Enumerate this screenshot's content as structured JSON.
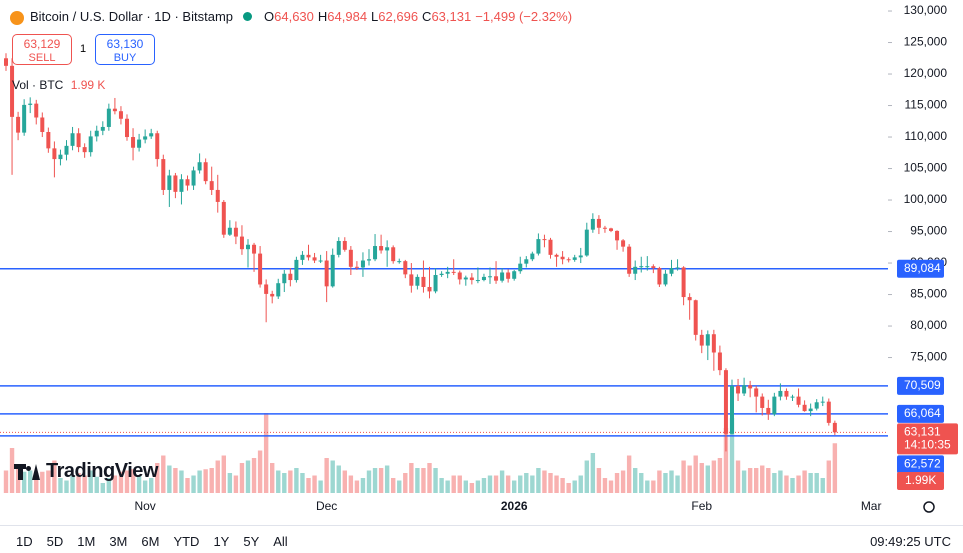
{
  "header": {
    "symbol": "Bitcoin / U.S. Dollar · 1D · Bitstamp",
    "ohlc": [
      {
        "key": "O",
        "value": "64,630"
      },
      {
        "key": "H",
        "value": "64,984"
      },
      {
        "key": "L",
        "value": "62,696"
      },
      {
        "key": "C",
        "value": "63,131"
      }
    ],
    "change": "−1,499 (−2.32%)"
  },
  "trade": {
    "sell_price": "63,129",
    "sell": "SELL",
    "quantity": "1",
    "buy_price": "63,130",
    "buy": "BUY"
  },
  "volume_legend": {
    "label": "Vol · BTC",
    "value": "1.99 K"
  },
  "logo": "TradingView",
  "timeframes": [
    "1D",
    "5D",
    "1M",
    "3M",
    "6M",
    "YTD",
    "1Y",
    "5Y",
    "All"
  ],
  "clock": "09:49:25 UTC",
  "chart_data": {
    "type": "candlestick",
    "categories": [
      null,
      null,
      null,
      null,
      null,
      null,
      null,
      null,
      null,
      null,
      null,
      null,
      null,
      null,
      null,
      null,
      null,
      null,
      null,
      null,
      null,
      null,
      null,
      "Nov",
      null,
      null,
      null,
      null,
      null,
      null,
      null,
      null,
      null,
      null,
      null,
      null,
      null,
      null,
      null,
      null,
      null,
      null,
      null,
      null,
      null,
      null,
      null,
      null,
      null,
      null,
      null,
      null,
      null,
      "Dec",
      null,
      null,
      null,
      null,
      null,
      null,
      null,
      null,
      null,
      null,
      null,
      null,
      null,
      null,
      null,
      null,
      null,
      null,
      null,
      null,
      null,
      null,
      null,
      null,
      null,
      null,
      null,
      null,
      null,
      null,
      "2026",
      null,
      null,
      null,
      null,
      null,
      null,
      null,
      null,
      null,
      null,
      null,
      null,
      null,
      null,
      null,
      null,
      null,
      null,
      null,
      null,
      null,
      null,
      null,
      null,
      null,
      null,
      null,
      null,
      null,
      null,
      "Feb",
      null,
      null,
      null,
      null,
      null,
      null,
      null,
      null,
      null,
      null,
      null,
      null,
      null,
      null,
      null,
      null,
      null,
      null,
      null,
      null,
      null,
      null,
      null,
      null,
      null,
      null,
      null,
      "Mar"
    ],
    "open": [
      122500,
      121300,
      113200,
      110700,
      115100,
      115300,
      113100,
      110800,
      108200,
      106500,
      107200,
      108600,
      110600,
      108400,
      107600,
      110100,
      111000,
      111600,
      114500,
      114100,
      112900,
      110000,
      108300,
      109600,
      110100,
      110600,
      106500,
      101600,
      103900,
      101300,
      103300,
      102300,
      104700,
      106000,
      103000,
      101600,
      99700,
      94500,
      95600,
      94200,
      92200,
      92900,
      91500,
      86600,
      85100,
      84700,
      86800,
      88300,
      87300,
      90500,
      91300,
      90900,
      90400,
      90400,
      86300,
      91300,
      93500,
      92100,
      89400,
      89300,
      90400,
      90600,
      92700,
      92000,
      92500,
      90300,
      90300,
      88200,
      86400,
      87800,
      86200,
      85500,
      88100,
      88300,
      88600,
      88500,
      87400,
      87700,
      87300,
      87300,
      87800,
      87900,
      87200,
      88500,
      87500,
      88700,
      89900,
      90600,
      91500,
      93800,
      93700,
      91300,
      91000,
      90600,
      90500,
      90900,
      91200,
      95300,
      97000,
      95600,
      95500,
      95100,
      93600,
      92600,
      88300,
      89400,
      89500,
      89500,
      89200,
      86600,
      88300,
      89200,
      89300,
      84600,
      84100,
      78600,
      76900,
      78700,
      75800,
      73000,
      62900,
      70500,
      69300,
      70600,
      70100,
      68800,
      67000,
      66000,
      68800,
      69700,
      68800,
      68800,
      67500,
      66500,
      66900,
      67900,
      68000,
      64630,
      null,
      null,
      null,
      null,
      null,
      null
    ],
    "high": [
      123300,
      122500,
      114000,
      116000,
      116300,
      115900,
      113900,
      111500,
      109300,
      108000,
      109500,
      111600,
      111400,
      109000,
      111000,
      111800,
      112500,
      115300,
      116200,
      114900,
      113600,
      111400,
      110500,
      111200,
      111300,
      111000,
      107200,
      104800,
      104300,
      104100,
      103900,
      105300,
      107400,
      106600,
      105300,
      104000,
      100000,
      96800,
      96600,
      96000,
      93800,
      93200,
      92700,
      87400,
      85600,
      87500,
      88900,
      89200,
      91000,
      91900,
      92900,
      91600,
      91300,
      91900,
      92300,
      94100,
      94100,
      92700,
      90300,
      91700,
      92200,
      94600,
      94500,
      93600,
      92800,
      90700,
      90500,
      90000,
      88200,
      90400,
      89400,
      89200,
      88700,
      89400,
      90600,
      88800,
      88000,
      88400,
      89300,
      88300,
      89300,
      90300,
      89200,
      89000,
      88900,
      91000,
      91100,
      91800,
      94700,
      94500,
      94000,
      91500,
      91900,
      90900,
      91300,
      92400,
      96400,
      97900,
      97600,
      95900,
      95600,
      95200,
      93800,
      93000,
      90400,
      91000,
      91100,
      89800,
      89400,
      88900,
      90500,
      90600,
      89500,
      85200,
      84200,
      79400,
      79300,
      79400,
      76900,
      73300,
      71500,
      71600,
      71800,
      71300,
      70500,
      69300,
      68300,
      69400,
      70900,
      70100,
      69100,
      70100,
      68200,
      67700,
      68400,
      68800,
      68500,
      64984,
      null,
      null,
      null,
      null,
      null,
      null
    ],
    "low": [
      120500,
      104000,
      109500,
      110200,
      113800,
      112000,
      110000,
      107500,
      103600,
      105500,
      106300,
      107900,
      107600,
      106700,
      106900,
      109300,
      110300,
      111000,
      113600,
      112000,
      109400,
      106300,
      107700,
      109000,
      109700,
      105300,
      100800,
      98900,
      100300,
      99300,
      101500,
      101600,
      104200,
      102500,
      100800,
      98000,
      94000,
      94300,
      93000,
      91300,
      89300,
      88600,
      86100,
      80600,
      83600,
      84300,
      85400,
      86300,
      86900,
      89700,
      90400,
      90000,
      90000,
      83800,
      86100,
      90900,
      91800,
      88100,
      88900,
      87800,
      89600,
      90300,
      91500,
      89400,
      89900,
      89900,
      87600,
      85300,
      85800,
      85300,
      84400,
      85200,
      87800,
      87600,
      88100,
      86600,
      86400,
      86600,
      86800,
      87100,
      86700,
      86700,
      86900,
      86900,
      87200,
      88300,
      89300,
      90300,
      91200,
      92500,
      90700,
      89400,
      89800,
      90100,
      90200,
      90000,
      91000,
      94800,
      94600,
      94800,
      94900,
      92100,
      91800,
      87800,
      87300,
      88500,
      88800,
      88400,
      86200,
      86300,
      87900,
      88800,
      83300,
      81000,
      77700,
      75700,
      74600,
      72900,
      72200,
      60100,
      62800,
      68100,
      68900,
      68700,
      66300,
      65800,
      65100,
      65700,
      68200,
      68300,
      68100,
      67100,
      66400,
      65700,
      66600,
      67300,
      64200,
      62696,
      null,
      null,
      null,
      null,
      null,
      null
    ],
    "close": [
      121300,
      113200,
      110700,
      115100,
      115300,
      113100,
      110800,
      108200,
      106500,
      107200,
      108600,
      110600,
      108400,
      107600,
      110100,
      111000,
      111600,
      114500,
      114100,
      112900,
      110000,
      108300,
      109600,
      110100,
      110600,
      106500,
      101600,
      103900,
      101300,
      103300,
      102300,
      104700,
      106000,
      103000,
      101600,
      99700,
      94500,
      95600,
      94200,
      92200,
      92900,
      91500,
      86600,
      85100,
      84700,
      86800,
      88300,
      87300,
      90500,
      91300,
      90900,
      90400,
      90400,
      86300,
      91300,
      93500,
      92100,
      89400,
      89300,
      90400,
      90600,
      92700,
      92000,
      92500,
      90300,
      90300,
      88200,
      86400,
      87800,
      86200,
      85500,
      88100,
      88300,
      88600,
      88500,
      87400,
      87700,
      87300,
      87300,
      87800,
      87900,
      87200,
      88500,
      87500,
      88700,
      89900,
      90600,
      91500,
      93800,
      93700,
      91300,
      91000,
      90600,
      90500,
      90900,
      91200,
      95300,
      97000,
      95600,
      95500,
      95100,
      93600,
      92600,
      88300,
      89400,
      89500,
      89500,
      89200,
      86600,
      88300,
      89200,
      89300,
      84600,
      84100,
      78600,
      76900,
      78700,
      75800,
      73000,
      62900,
      70500,
      69300,
      70600,
      70100,
      68800,
      67000,
      66000,
      68800,
      69700,
      68800,
      68800,
      67500,
      66500,
      66900,
      67900,
      68000,
      64630,
      63131,
      null,
      null,
      null,
      null,
      null,
      null
    ],
    "volume": [
      900,
      1800,
      1000,
      850,
      900,
      800,
      850,
      900,
      1300,
      600,
      500,
      700,
      800,
      700,
      900,
      650,
      400,
      600,
      700,
      850,
      900,
      950,
      700,
      500,
      600,
      1200,
      1500,
      1100,
      1000,
      900,
      600,
      700,
      900,
      950,
      1000,
      1300,
      1500,
      800,
      700,
      1200,
      1300,
      1400,
      1700,
      3200,
      1200,
      900,
      800,
      900,
      1000,
      800,
      600,
      700,
      500,
      1400,
      1300,
      1100,
      900,
      700,
      500,
      600,
      900,
      1000,
      1000,
      1100,
      600,
      500,
      800,
      1200,
      1000,
      1000,
      1200,
      1000,
      600,
      500,
      700,
      700,
      500,
      400,
      500,
      600,
      700,
      700,
      900,
      700,
      500,
      700,
      800,
      700,
      1000,
      900,
      800,
      700,
      600,
      400,
      500,
      700,
      1300,
      1600,
      1000,
      600,
      500,
      800,
      900,
      1500,
      1000,
      800,
      500,
      500,
      900,
      800,
      900,
      700,
      1300,
      1100,
      1500,
      1200,
      1100,
      1300,
      1400,
      2600,
      3000,
      1300,
      900,
      1000,
      1000,
      1100,
      1000,
      800,
      900,
      700,
      600,
      700,
      900,
      800,
      800,
      600,
      1300,
      1990,
      null,
      null,
      null,
      null,
      null,
      null
    ],
    "volume_label": "1.99K",
    "ylim": [
      53500,
      131750
    ],
    "yticks": [
      {
        "value": 130000,
        "label": "130,000"
      },
      {
        "value": 125000,
        "label": "125,000"
      },
      {
        "value": 120000,
        "label": "120,000"
      },
      {
        "value": 115000,
        "label": "115,000"
      },
      {
        "value": 110000,
        "label": "110,000"
      },
      {
        "value": 105000,
        "label": "105,000"
      },
      {
        "value": 100000,
        "label": "100,000"
      },
      {
        "value": 95000,
        "label": "95,000"
      },
      {
        "value": 90000,
        "label": "90,000"
      },
      {
        "value": 85000,
        "label": "85,000"
      },
      {
        "value": 80000,
        "label": "80,000"
      },
      {
        "value": 75000,
        "label": "75,000"
      }
    ],
    "grid": false,
    "up_color": "#26a69a",
    "down_color": "#ef5350",
    "hlines": [
      {
        "value": 89084,
        "label": "89,084",
        "color": "#2962ff"
      },
      {
        "value": 70509,
        "label": "70,509",
        "color": "#2962ff"
      },
      {
        "value": 66064,
        "label": "66,064",
        "color": "#2962ff"
      },
      {
        "value": 62572,
        "label": "62,572",
        "color": "#2962ff"
      }
    ],
    "last_price": {
      "value": 63131,
      "label": "63,131",
      "countdown": "14:10:35",
      "color": "#ef5350"
    }
  }
}
